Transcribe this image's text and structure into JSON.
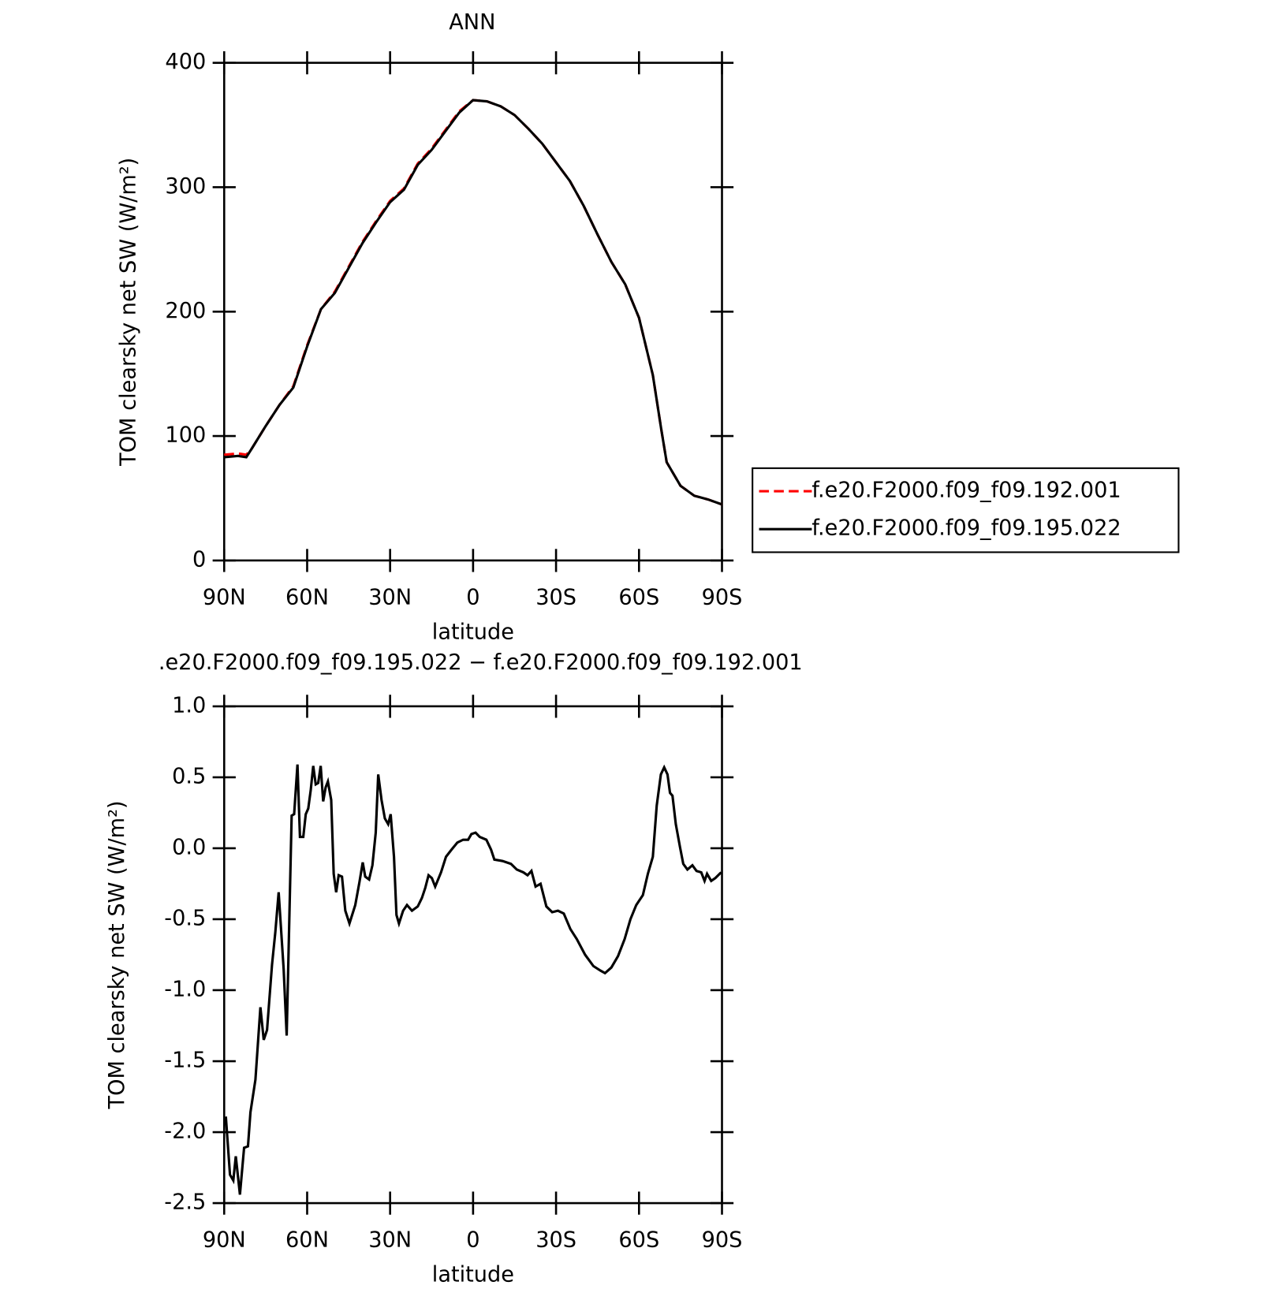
{
  "chart_data": [
    {
      "type": "line",
      "title": "ANN",
      "xlabel": "latitude",
      "ylabel": "TOM clearsky net SW (W/m²)",
      "x": [
        90,
        85,
        82,
        80,
        75,
        70,
        65,
        60,
        55,
        50,
        45,
        40,
        35,
        30,
        25,
        20,
        15,
        10,
        5,
        0,
        -5,
        -10,
        -15,
        -20,
        -25,
        -30,
        -35,
        -40,
        -45,
        -50,
        -55,
        -60,
        -65,
        -68,
        -70,
        -75,
        -80,
        -85,
        -90
      ],
      "series": [
        {
          "name": "f.e20.F2000.f09_f09.192.001",
          "color": "#ff0000",
          "linestyle": "dashed",
          "values": [
            85,
            86,
            85,
            90,
            108,
            125,
            140,
            173,
            202,
            216,
            236,
            256,
            273,
            289,
            299,
            319,
            331,
            346,
            361,
            370,
            369,
            365,
            358,
            347,
            335,
            320,
            305,
            285,
            262,
            240,
            222,
            195,
            149,
            106,
            79,
            60,
            52,
            49,
            45
          ]
        },
        {
          "name": "f.e20.F2000.f09_f09.195.022",
          "color": "#000000",
          "linestyle": "solid",
          "values": [
            83,
            84,
            83,
            90,
            108,
            125,
            139,
            172,
            202,
            215,
            235,
            255,
            272,
            288,
            298,
            318,
            330,
            345,
            360,
            370,
            369,
            365,
            358,
            347,
            335,
            320,
            305,
            285,
            262,
            240,
            222,
            195,
            149,
            106,
            79,
            60,
            52,
            49,
            45
          ]
        }
      ],
      "xlim": [
        90,
        -90
      ],
      "xticks": [
        {
          "value": 90,
          "label": "90N"
        },
        {
          "value": 60,
          "label": "60N"
        },
        {
          "value": 30,
          "label": "30N"
        },
        0,
        {
          "value": -30,
          "label": "30S"
        },
        {
          "value": -60,
          "label": "60S"
        },
        {
          "value": -90,
          "label": "90S"
        }
      ],
      "ylim": [
        0,
        400
      ],
      "yticks": [
        0,
        100,
        200,
        300,
        400
      ],
      "legend": "right",
      "grid": false
    },
    {
      "type": "line",
      "title": ".e20.F2000.f09_f09.195.022 − f.e20.F2000.f09_f09.192.001",
      "xlabel": "latitude",
      "ylabel": "TOM clearsky net SW (W/m²)",
      "x": [
        89.4,
        87.9,
        86.7,
        85.8,
        84.3,
        82.8,
        81.4,
        80.5,
        78.7,
        76.9,
        75.7,
        74.5,
        72.7,
        71.5,
        70.3,
        69.1,
        68.5,
        67.4,
        65.6,
        64.7,
        63.5,
        62.6,
        61.4,
        60.5,
        59.6,
        58.7,
        57.8,
        56.9,
        56.0,
        55.1,
        54.2,
        53.3,
        52.5,
        51.3,
        50.4,
        49.5,
        48.6,
        47.4,
        46.2,
        44.7,
        42.6,
        41.1,
        39.9,
        39.0,
        37.6,
        36.4,
        35.2,
        34.3,
        33.1,
        31.9,
        30.7,
        29.8,
        28.6,
        27.7,
        26.8,
        25.3,
        23.9,
        22.1,
        20.0,
        18.5,
        17.3,
        16.1,
        14.9,
        13.7,
        11.6,
        9.8,
        7.8,
        5.7,
        3.6,
        1.8,
        0.6,
        -0.9,
        -2.4,
        -4.8,
        -6.5,
        -7.7,
        -10.7,
        -13.7,
        -15.8,
        -18.2,
        -19.7,
        -21.1,
        -22.6,
        -24.4,
        -26.5,
        -28.6,
        -30.7,
        -32.8,
        -35.2,
        -37.5,
        -40.5,
        -43.5,
        -45.9,
        -47.7,
        -50.0,
        -52.4,
        -54.8,
        -56.9,
        -59.0,
        -61.4,
        -63.2,
        -65.0,
        -66.4,
        -67.9,
        -69.1,
        -70.3,
        -71.2,
        -72.1,
        -73.3,
        -74.8,
        -76.0,
        -77.5,
        -79.3,
        -80.8,
        -82.5,
        -83.7,
        -84.6,
        -86.1,
        -87.6,
        -89.7
      ],
      "series": [
        {
          "color": "#000000",
          "linestyle": "solid",
          "values": [
            -1.89,
            -2.3,
            -2.34,
            -2.17,
            -2.44,
            -2.11,
            -2.1,
            -1.86,
            -1.63,
            -1.12,
            -1.35,
            -1.28,
            -0.82,
            -0.59,
            -0.31,
            -0.67,
            -0.85,
            -1.32,
            0.23,
            0.24,
            0.59,
            0.08,
            0.08,
            0.24,
            0.28,
            0.41,
            0.58,
            0.45,
            0.46,
            0.58,
            0.33,
            0.43,
            0.47,
            0.34,
            -0.18,
            -0.31,
            -0.19,
            -0.2,
            -0.44,
            -0.53,
            -0.4,
            -0.24,
            -0.1,
            -0.2,
            -0.22,
            -0.12,
            0.11,
            0.52,
            0.34,
            0.21,
            0.17,
            0.24,
            -0.06,
            -0.47,
            -0.53,
            -0.44,
            -0.4,
            -0.44,
            -0.41,
            -0.35,
            -0.28,
            -0.19,
            -0.21,
            -0.27,
            -0.17,
            -0.06,
            -0.01,
            0.04,
            0.06,
            0.06,
            0.1,
            0.11,
            0.08,
            0.06,
            -0.01,
            -0.08,
            -0.09,
            -0.11,
            -0.15,
            -0.17,
            -0.19,
            -0.16,
            -0.27,
            -0.25,
            -0.41,
            -0.45,
            -0.44,
            -0.46,
            -0.57,
            -0.64,
            -0.75,
            -0.83,
            -0.86,
            -0.88,
            -0.84,
            -0.76,
            -0.64,
            -0.5,
            -0.4,
            -0.33,
            -0.18,
            -0.06,
            0.3,
            0.52,
            0.57,
            0.52,
            0.39,
            0.37,
            0.17,
            0.01,
            -0.11,
            -0.15,
            -0.12,
            -0.16,
            -0.17,
            -0.23,
            -0.18,
            -0.23,
            -0.21,
            -0.17
          ]
        }
      ],
      "xlim": [
        90,
        -90
      ],
      "xticks": [
        {
          "value": 90,
          "label": "90N"
        },
        {
          "value": 60,
          "label": "60N"
        },
        {
          "value": 30,
          "label": "30N"
        },
        0,
        {
          "value": -30,
          "label": "30S"
        },
        {
          "value": -60,
          "label": "60S"
        },
        {
          "value": -90,
          "label": "90S"
        }
      ],
      "ylim": [
        -2.5,
        1
      ],
      "yticks": [
        -2.5,
        {
          "value": -2,
          "label": "-2.0"
        },
        -1.5,
        {
          "value": -1,
          "label": "-1.0"
        },
        -0.5,
        {
          "value": 0,
          "label": "0.0"
        },
        0.5,
        {
          "value": 1,
          "label": "1.0"
        }
      ],
      "grid": false
    }
  ]
}
